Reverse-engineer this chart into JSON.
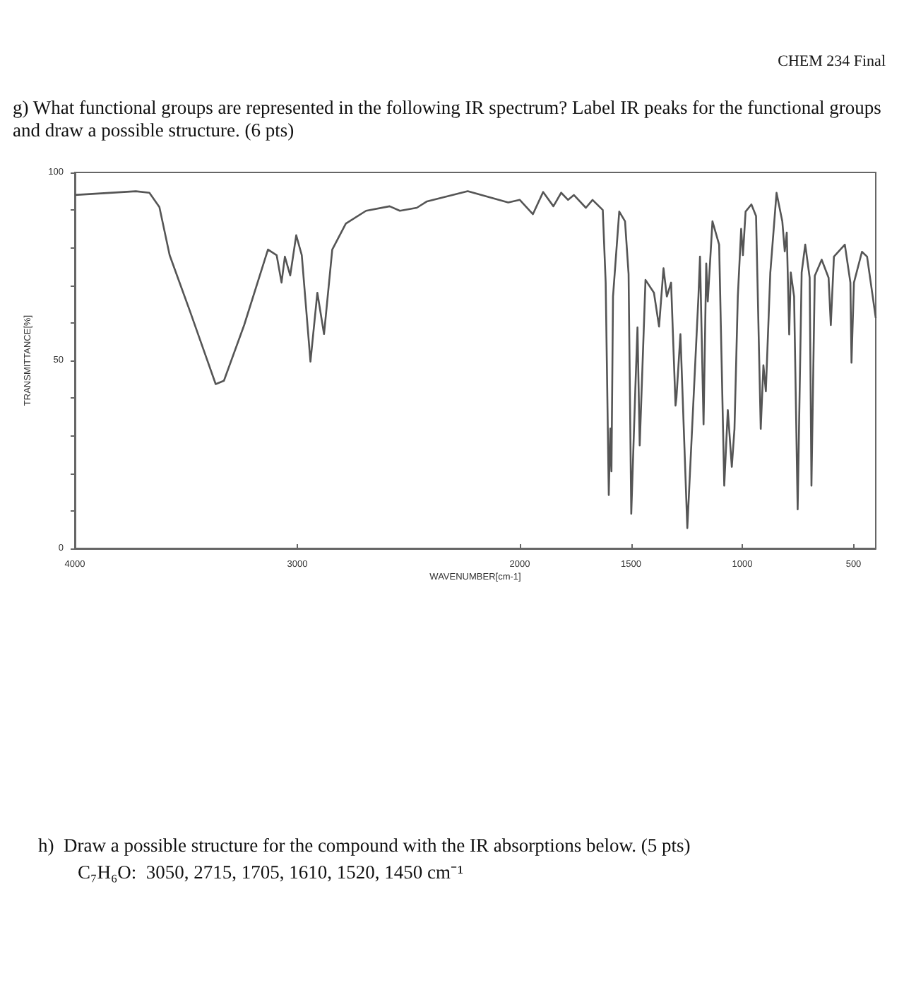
{
  "chart_data": {
    "type": "line",
    "title": "g) What functional groups are represented in the following IR spectrum? Label IR peaks for the functional groups and draw a possible structure. (6 pts)",
    "xlabel": "WAVENUMBER[cm-1]",
    "ylabel": "TRANSMITTANCE[%]",
    "annotations": [
      "CHEM 234 Final",
      "h)  Draw a possible structure for the compound with the IR absorptions below. (5 pts)",
      "C₇H₆O:  3050, 2715, 1705, 1610, 1520, 1450 cm⁻¹"
    ],
    "series": [
      {
        "color": "#555555",
        "x": [
          4000,
          3726,
          3665,
          3620,
          3574,
          3482,
          3367,
          3330,
          3239,
          3132,
          3093,
          3071,
          3056,
          3032,
          3005,
          2980,
          2941,
          2910,
          2880,
          2843,
          2782,
          2691,
          2585,
          2539,
          2463,
          2417,
          2234,
          2052,
          2000,
          1941,
          1895,
          1849,
          1814,
          1783,
          1757,
          1703,
          1673,
          1627,
          1614,
          1600,
          1593,
          1588,
          1581,
          1553,
          1527,
          1511,
          1499,
          1481,
          1471,
          1461,
          1435,
          1397,
          1374,
          1354,
          1339,
          1320,
          1300,
          1296,
          1278,
          1247,
          1197,
          1190,
          1174,
          1162,
          1155,
          1134,
          1104,
          1081,
          1065,
          1047,
          1035,
          1020,
          1005,
          997,
          985,
          959,
          938,
          917,
          905,
          894,
          874,
          846,
          820,
          809,
          800,
          789,
          782,
          767,
          751,
          733,
          717,
          697,
          689,
          674,
          643,
          612,
          602,
          588,
          539,
          514,
          509,
          498,
          462,
          439,
          400
        ],
        "values": [
          94,
          95,
          94.6,
          90.8,
          78,
          63,
          43.7,
          44.6,
          59.4,
          79.5,
          78,
          70.7,
          77.6,
          72.6,
          83.3,
          78,
          49.7,
          68,
          57,
          79.5,
          86.4,
          89.8,
          91,
          89.8,
          90.6,
          92.3,
          95,
          92,
          92.7,
          88.9,
          94.8,
          91,
          94.6,
          92.7,
          94,
          90.6,
          92.7,
          90,
          70.7,
          14.2,
          31.9,
          20.5,
          67,
          89.6,
          87,
          73,
          9.2,
          41.8,
          58.8,
          27.4,
          71.4,
          68,
          59,
          74.5,
          67,
          70.7,
          38,
          40,
          57,
          5.4,
          67,
          77.6,
          33,
          75.8,
          65.7,
          87,
          80.8,
          16.7,
          36.8,
          21.7,
          31.8,
          67,
          85,
          78,
          89.6,
          91.5,
          88.4,
          31.8,
          48.7,
          41.8,
          73.3,
          94.6,
          87,
          79,
          84,
          56.9,
          73.4,
          67,
          10.4,
          73.4,
          80.8,
          72,
          16.7,
          72.5,
          76.8,
          72,
          59.4,
          77.6,
          80.8,
          70.7,
          49.4,
          70.7,
          78.9,
          77.6,
          61.3
        ]
      }
    ],
    "xlim": [
      4000,
      400
    ],
    "xticks": [
      4000,
      3000,
      2000,
      1500,
      1000,
      500
    ],
    "ylim": [
      0,
      100
    ],
    "yticks": [
      0,
      {
        "value": 10,
        "label": null
      },
      {
        "value": 20,
        "label": null
      },
      {
        "value": 30,
        "label": null
      },
      {
        "value": 40,
        "label": null
      },
      50,
      {
        "value": 60,
        "label": null
      },
      {
        "value": 70,
        "label": null
      },
      {
        "value": 80,
        "label": null
      },
      {
        "value": 90,
        "label": null
      },
      100
    ],
    "grid": false,
    "marker": "none",
    "line_style": "solid"
  }
}
